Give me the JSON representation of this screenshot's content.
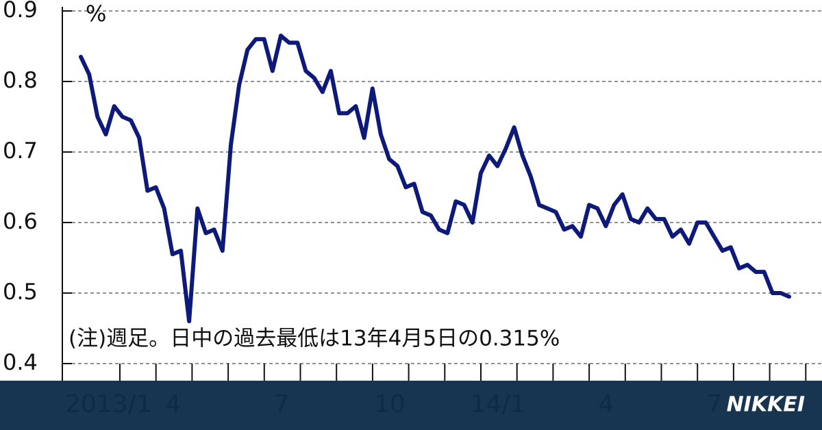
{
  "chart_data": {
    "type": "line",
    "y_label": "%",
    "note": "(注)週足。日中の過去最低は13年4月5日の0.315%",
    "brand": "NIKKEI",
    "x_labels": [
      "2013/1",
      "4",
      "7",
      "10",
      "14/1",
      "4",
      "7"
    ],
    "series": [
      {
        "name": null,
        "color": "#0d1a7a",
        "values": [
          0.835,
          0.81,
          0.75,
          0.725,
          0.765,
          0.75,
          0.745,
          0.72,
          0.645,
          0.65,
          0.62,
          0.555,
          0.56,
          0.46,
          0.62,
          0.585,
          0.59,
          0.56,
          0.71,
          0.795,
          0.845,
          0.86,
          0.86,
          0.815,
          0.865,
          0.855,
          0.855,
          0.815,
          0.805,
          0.785,
          0.815,
          0.755,
          0.755,
          0.765,
          0.72,
          0.79,
          0.725,
          0.69,
          0.68,
          0.65,
          0.655,
          0.615,
          0.61,
          0.59,
          0.585,
          0.63,
          0.625,
          0.6,
          0.67,
          0.695,
          0.68,
          0.705,
          0.735,
          0.695,
          0.665,
          0.625,
          0.62,
          0.615,
          0.59,
          0.595,
          0.58,
          0.625,
          0.62,
          0.595,
          0.625,
          0.64,
          0.605,
          0.6,
          0.62,
          0.605,
          0.605,
          0.58,
          0.59,
          0.57,
          0.6,
          0.6,
          0.58,
          0.56,
          0.565,
          0.535,
          0.54,
          0.53,
          0.53,
          0.5,
          0.5,
          0.495
        ]
      }
    ],
    "ylim": [
      0.4,
      0.9
    ],
    "yticks": [
      0.4,
      0.5,
      0.6,
      0.7,
      0.8,
      0.9
    ],
    "grid": true
  }
}
